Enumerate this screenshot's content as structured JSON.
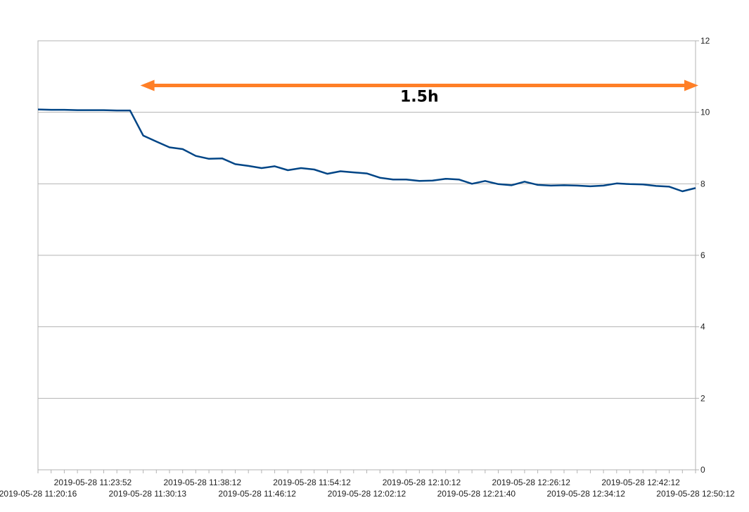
{
  "chart_data": {
    "type": "line",
    "title": "",
    "xlabel": "",
    "ylabel": "",
    "ylim": [
      0,
      12
    ],
    "y_ticks": [
      0,
      2,
      4,
      6,
      8,
      10,
      12
    ],
    "y_axis_side": "right",
    "grid": true,
    "legend": "none",
    "colors": {
      "series": "#004586",
      "annotation": "#ff7f27",
      "grid": "#b3b3b3"
    },
    "x_tick_labels": [
      "2019-05-28 11:20:16",
      "2019-05-28 11:23:52",
      "2019-05-28 11:30:13",
      "2019-05-28 11:38:12",
      "2019-05-28 11:46:12",
      "2019-05-28 11:54:12",
      "2019-05-28 12:02:12",
      "2019-05-28 12:10:12",
      "2019-05-28 12:21:40",
      "2019-05-28 12:26:12",
      "2019-05-28 12:34:12",
      "2019-05-28 12:42:12",
      "2019-05-28 12:50:12"
    ],
    "series": [
      {
        "values": [
          10.08,
          10.07,
          10.07,
          10.06,
          10.06,
          10.06,
          10.05,
          10.05,
          9.35,
          9.18,
          9.02,
          8.97,
          8.78,
          8.7,
          8.71,
          8.55,
          8.5,
          8.44,
          8.49,
          8.38,
          8.44,
          8.4,
          8.28,
          8.35,
          8.32,
          8.29,
          8.17,
          8.12,
          8.12,
          8.08,
          8.09,
          8.14,
          8.12,
          8.0,
          8.08,
          7.99,
          7.96,
          8.06,
          7.97,
          7.95,
          7.96,
          7.95,
          7.93,
          7.95,
          8.01,
          7.99,
          7.98,
          7.94,
          7.92,
          7.79,
          7.88
        ]
      }
    ],
    "annotation": {
      "text": "1.5h",
      "from_index": 8,
      "to_index": 50,
      "y": 10.75
    }
  }
}
